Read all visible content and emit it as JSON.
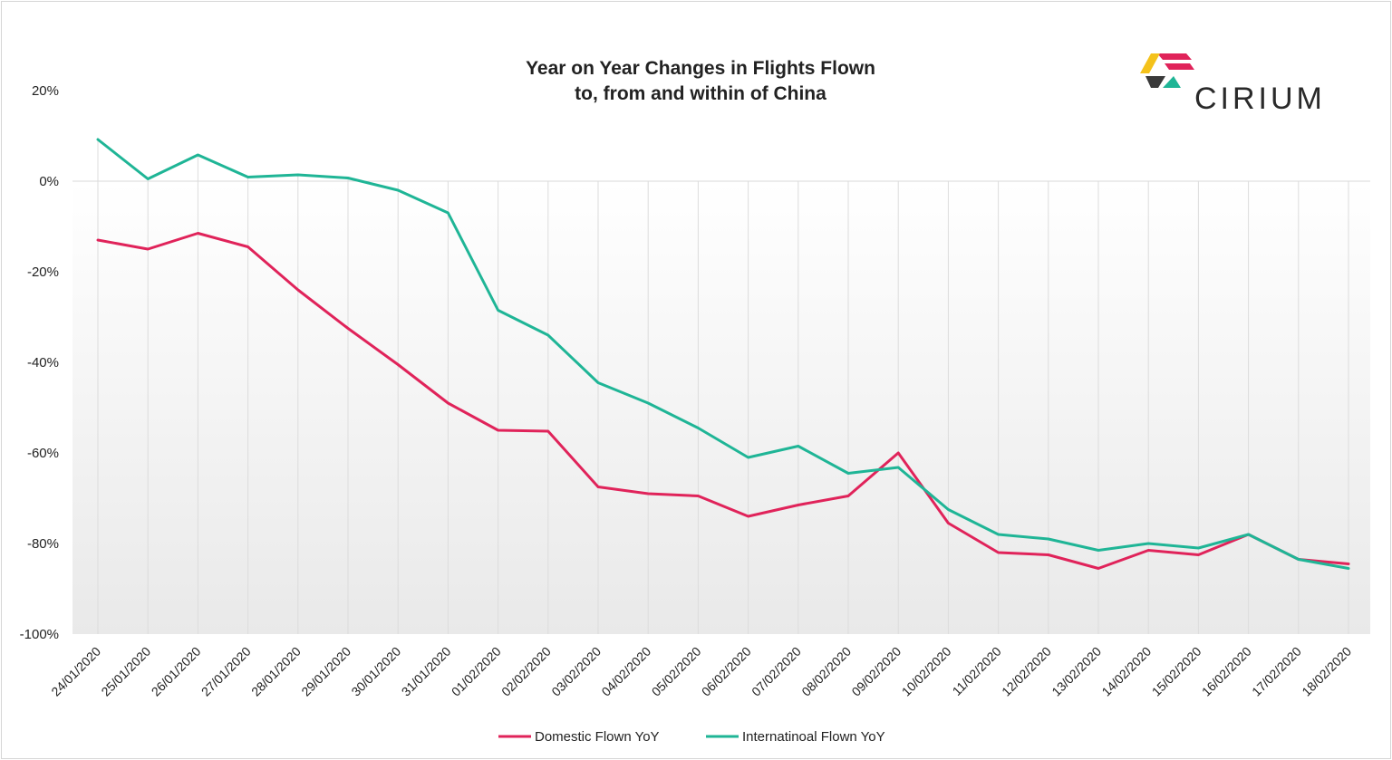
{
  "chart_data": {
    "type": "line",
    "title": "Year on Year Changes in Flights Flown",
    "subtitle": "to, from and within of China",
    "ylim": [
      -100,
      20
    ],
    "yticks": [
      "20%",
      "0%",
      "-20%",
      "-40%",
      "-60%",
      "-80%",
      "-100%"
    ],
    "ytick_values": [
      20,
      0,
      -20,
      -40,
      -60,
      -80,
      -100
    ],
    "categories": [
      "24/01/2020",
      "25/01/2020",
      "26/01/2020",
      "27/01/2020",
      "28/01/2020",
      "29/01/2020",
      "30/01/2020",
      "31/01/2020",
      "01/02/2020",
      "02/02/2020",
      "03/02/2020",
      "04/02/2020",
      "05/02/2020",
      "06/02/2020",
      "07/02/2020",
      "08/02/2020",
      "09/02/2020",
      "10/02/2020",
      "11/02/2020",
      "12/02/2020",
      "13/02/2020",
      "14/02/2020",
      "15/02/2020",
      "16/02/2020",
      "17/02/2020",
      "18/02/2020"
    ],
    "series": [
      {
        "name": "Domestic Flown YoY",
        "color": "#e0235a",
        "values": [
          -13,
          -15,
          -11.5,
          -14.5,
          -24,
          -32.5,
          -40.5,
          -49,
          -55,
          -55.2,
          -67.5,
          -69,
          -69.5,
          -74,
          -71.5,
          -69.5,
          -60,
          -75.5,
          -82,
          -82.5,
          -85.5,
          -81.5,
          -82.5,
          -78,
          -83.5,
          -84.5
        ]
      },
      {
        "name": "Internatinoal Flown YoY",
        "color": "#1fb596",
        "values": [
          9.2,
          0.5,
          5.8,
          0.9,
          1.4,
          0.7,
          -2,
          -7,
          -28.5,
          -34,
          -44.5,
          -49,
          -54.5,
          -61,
          -58.5,
          -64.5,
          -63.2,
          -72.5,
          -78,
          -79,
          -81.5,
          -80,
          -81,
          -78,
          -83.5,
          -85.5
        ]
      }
    ],
    "grid": "vertical drop lines"
  },
  "logo": {
    "text": "CIRIUM"
  }
}
